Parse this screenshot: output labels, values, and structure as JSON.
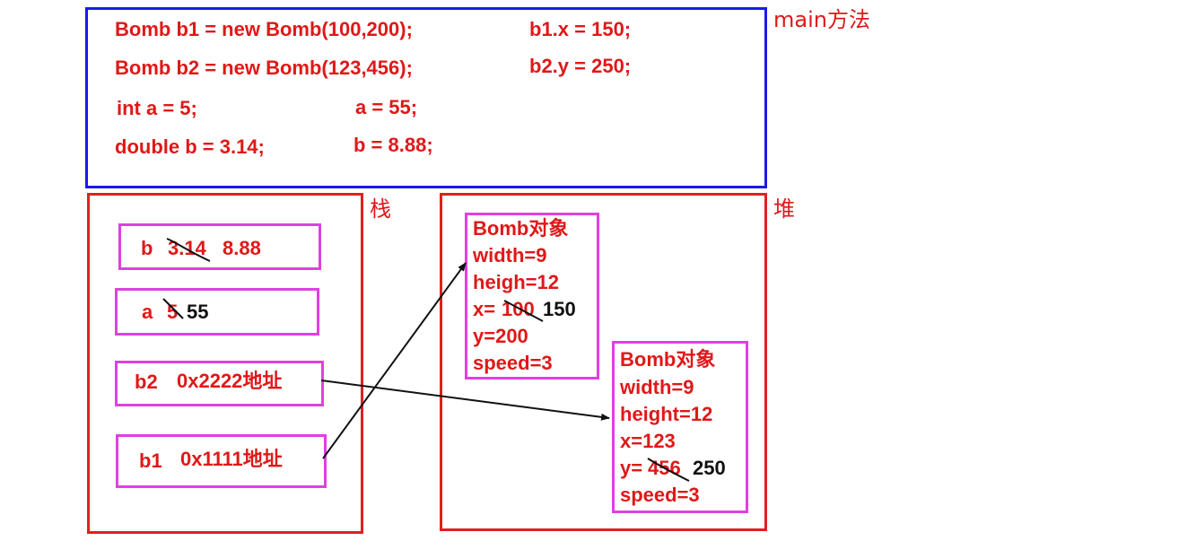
{
  "main_section": {
    "label": "main方法",
    "code": {
      "b1_decl": "Bomb b1 = new Bomb(100,200);",
      "b1_assign": "b1.x = 150;",
      "b2_decl": "Bomb b2 = new Bomb(123,456);",
      "b2_assign": "b2.y = 250;",
      "a_decl": "int a = 5;",
      "a_assign": "a = 55;",
      "b_decl": "double b = 3.14;",
      "b_assign": "b = 8.88;"
    }
  },
  "stack": {
    "label": "栈",
    "b_slot": {
      "name": "b",
      "old_value": "3.14",
      "new_value": "8.88"
    },
    "a_slot": {
      "name": "a",
      "old_value": "5",
      "new_value": "55"
    },
    "b2_slot": {
      "name": "b2",
      "value": "0x2222地址"
    },
    "b1_slot": {
      "name": "b1",
      "value": "0x1111地址"
    }
  },
  "heap": {
    "label": "堆",
    "object1": {
      "title": "Bomb对象",
      "width": "width=9",
      "height": "heigh=12",
      "x_prefix": "x=",
      "x_old": "100",
      "x_new": "150",
      "y": "y=200",
      "speed": "speed=3"
    },
    "object2": {
      "title": "Bomb对象",
      "width": "width=9",
      "height": "height=12",
      "x": "x=123",
      "y_prefix": "y=",
      "y_old": "456",
      "y_new": "250",
      "speed": "speed=3"
    }
  },
  "colors": {
    "code_text": "#e01818",
    "main_border": "#1a1ae6",
    "region_border": "#e02020",
    "slot_border": "#e040e0",
    "arrow": "#111111"
  }
}
